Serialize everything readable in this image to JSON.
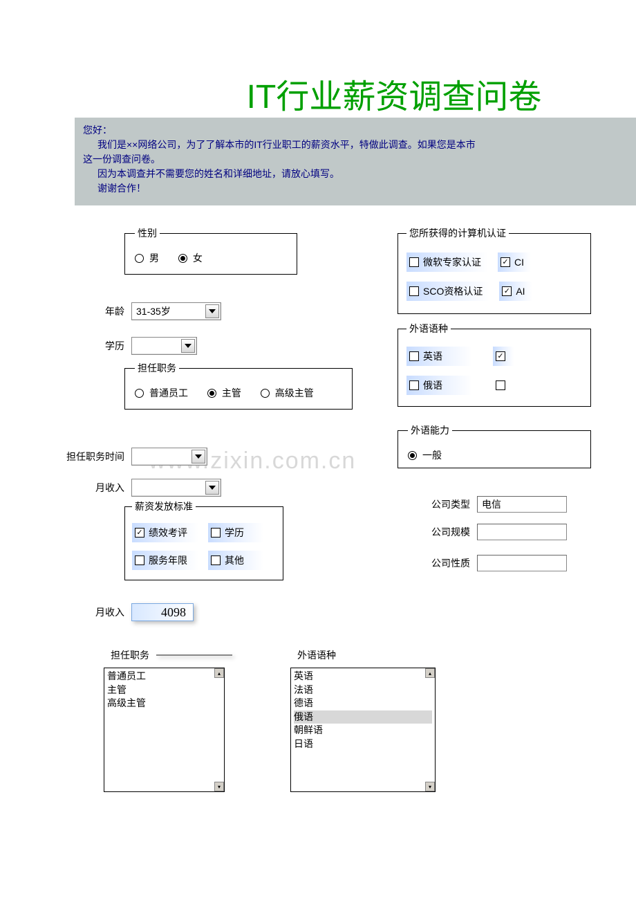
{
  "title": "IT行业薪资调查问卷",
  "intro": {
    "line1": "您好：",
    "line2": "我们是××网络公司，为了了解本市的IT行业职工的薪资水平，特做此调查。如果您是本市",
    "line3": "这一份调查问卷。",
    "line4": "因为本调查并不需要您的姓名和详细地址，请放心填写。",
    "line5": "谢谢合作！"
  },
  "watermark": "www.zixin.com.cn",
  "gender": {
    "legend": "性别",
    "options": {
      "male": "男",
      "female": "女"
    },
    "selected": "female"
  },
  "age": {
    "label": "年龄",
    "value": "31-35岁"
  },
  "education": {
    "label": "学历",
    "value": ""
  },
  "position": {
    "legend": "担任职务",
    "options": {
      "staff": "普通员工",
      "supervisor": "主管",
      "senior": "高级主管"
    },
    "selected": "supervisor"
  },
  "tenure": {
    "label": "担任职务时间",
    "value": ""
  },
  "income": {
    "label": "月收入",
    "value": ""
  },
  "salary_standard": {
    "legend": "薪资发放标准",
    "items": {
      "performance": {
        "label": "绩效考评",
        "checked": true
      },
      "education": {
        "label": "学历",
        "checked": false
      },
      "years": {
        "label": "服务年限",
        "checked": false
      },
      "other": {
        "label": "其他",
        "checked": false
      }
    }
  },
  "certifications": {
    "legend": "您所获得的计算机认证",
    "items": {
      "microsoft": {
        "label": "微软专家认证",
        "checked": false
      },
      "ci": {
        "label": "CI",
        "checked": true
      },
      "sco": {
        "label": "SCO资格认证",
        "checked": false
      },
      "ai": {
        "label": "AI",
        "checked": true
      }
    }
  },
  "languages": {
    "legend": "外语语种",
    "items": {
      "english": {
        "label": "英语",
        "checked": false
      },
      "blank1": {
        "label": "",
        "checked": true
      },
      "russian": {
        "label": "俄语",
        "checked": false
      },
      "blank2": {
        "label": "",
        "checked": false
      }
    }
  },
  "lang_ability": {
    "legend": "外语能力",
    "options": {
      "normal": "一般"
    },
    "selected": "normal"
  },
  "company": {
    "type": {
      "label": "公司类型",
      "value": "电信"
    },
    "scale": {
      "label": "公司规模",
      "value": ""
    },
    "nature": {
      "label": "公司性质",
      "value": ""
    }
  },
  "income2": {
    "label": "月收入",
    "value": "4098"
  },
  "position_list": {
    "label": "担任职务",
    "items": [
      "普通员工",
      "主管",
      "高级主管"
    ],
    "selected_index": -1
  },
  "lang_list": {
    "label": "外语语种",
    "items": [
      "英语",
      "法语",
      "德语",
      "俄语",
      "朝鲜语",
      "日语"
    ],
    "selected_index": 3
  },
  "colors": {
    "title": "#00a000",
    "intro_bg": "#c0c8c8",
    "intro_fg": "#000080"
  }
}
